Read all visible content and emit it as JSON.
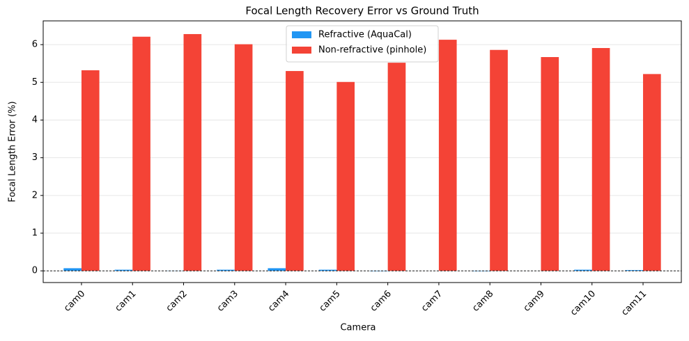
{
  "chart_data": {
    "type": "bar",
    "title": "Focal Length Recovery Error vs Ground Truth",
    "x_label": "Camera",
    "y_label": "Focal Length Error (%)",
    "categories": [
      "cam0",
      "cam1",
      "cam2",
      "cam3",
      "cam4",
      "cam5",
      "cam6",
      "cam7",
      "cam8",
      "cam9",
      "cam10",
      "cam11"
    ],
    "series": [
      {
        "name": "Refractive (AquaCal)",
        "color": "#2196f3",
        "values": [
          0.07,
          0.03,
          0.005,
          0.03,
          0.07,
          0.03,
          -0.01,
          0.0,
          -0.01,
          0.0,
          0.03,
          0.02
        ]
      },
      {
        "name": "Non-refractive (pinhole)",
        "color": "#f44336",
        "values": [
          5.32,
          6.21,
          6.28,
          6.01,
          5.3,
          5.01,
          5.52,
          6.13,
          5.86,
          5.67,
          5.91,
          5.22
        ]
      }
    ],
    "ylim": [
      -0.31,
      6.63
    ],
    "yticks": [
      0,
      1,
      2,
      3,
      4,
      5,
      6
    ],
    "reference_line": 0,
    "grid": true,
    "legend": "upper center"
  }
}
